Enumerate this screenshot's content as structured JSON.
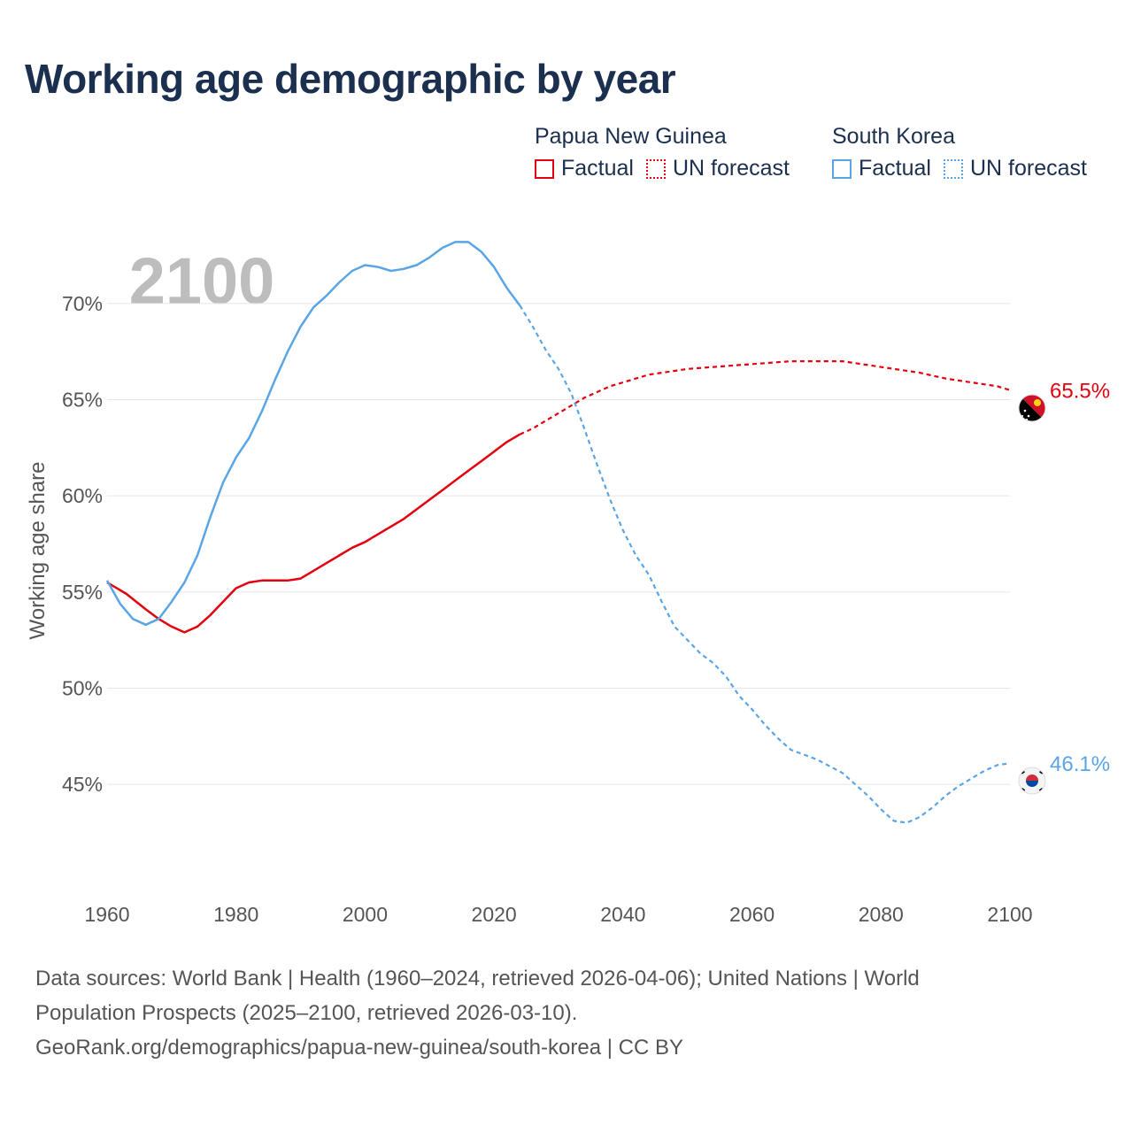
{
  "title": "Working age demographic by year",
  "year_watermark": "2100",
  "legend": {
    "papua_new_guinea": {
      "name": "Papua New Guinea",
      "factual": "Factual",
      "forecast": "UN forecast",
      "color": "#e3000f"
    },
    "south_korea": {
      "name": "South Korea",
      "factual": "Factual",
      "forecast": "UN forecast",
      "color": "#5aa5e6"
    }
  },
  "sources": {
    "line1": "Data sources: World Bank | Health (1960–2024, retrieved 2026-04-06); United Nations | World",
    "line2": "Population Prospects (2025–2100, retrieved 2026-03-10).",
    "line3": "GeoRank.org/demographics/papua-new-guinea/south-korea | CC BY"
  },
  "chart_data": {
    "type": "line",
    "ylabel": "Working age share",
    "xlabel": "",
    "xlim": [
      1960,
      2100
    ],
    "ylim": [
      41,
      74
    ],
    "x_ticks": [
      1960,
      1980,
      2000,
      2020,
      2040,
      2060,
      2080,
      2100
    ],
    "x_tick_labels": [
      "1960",
      "1980",
      "2000",
      "2020",
      "2040",
      "2060",
      "2080",
      "2100"
    ],
    "y_ticks": [
      45,
      50,
      55,
      60,
      65,
      70
    ],
    "y_tick_labels": [
      "45%",
      "50%",
      "55%",
      "60%",
      "65%",
      "70%"
    ],
    "forecast_start": 2024,
    "series": [
      {
        "name": "Papua New Guinea",
        "color": "#e3000f",
        "end_label": "65.5%",
        "points": [
          [
            1960,
            55.5
          ],
          [
            1963,
            54.9
          ],
          [
            1966,
            54.1
          ],
          [
            1968,
            53.6
          ],
          [
            1970,
            53.2
          ],
          [
            1972,
            52.9
          ],
          [
            1974,
            53.2
          ],
          [
            1976,
            53.8
          ],
          [
            1978,
            54.5
          ],
          [
            1980,
            55.2
          ],
          [
            1982,
            55.5
          ],
          [
            1984,
            55.6
          ],
          [
            1988,
            55.6
          ],
          [
            1990,
            55.7
          ],
          [
            1992,
            56.1
          ],
          [
            1994,
            56.5
          ],
          [
            1996,
            56.9
          ],
          [
            1998,
            57.3
          ],
          [
            2000,
            57.6
          ],
          [
            2002,
            58.0
          ],
          [
            2004,
            58.4
          ],
          [
            2006,
            58.8
          ],
          [
            2008,
            59.3
          ],
          [
            2010,
            59.8
          ],
          [
            2012,
            60.3
          ],
          [
            2014,
            60.8
          ],
          [
            2016,
            61.3
          ],
          [
            2018,
            61.8
          ],
          [
            2020,
            62.3
          ],
          [
            2022,
            62.8
          ],
          [
            2024,
            63.2
          ],
          [
            2026,
            63.5
          ],
          [
            2028,
            63.9
          ],
          [
            2030,
            64.3
          ],
          [
            2032,
            64.7
          ],
          [
            2034,
            65.1
          ],
          [
            2036,
            65.4
          ],
          [
            2038,
            65.7
          ],
          [
            2040,
            65.9
          ],
          [
            2042,
            66.1
          ],
          [
            2044,
            66.3
          ],
          [
            2046,
            66.4
          ],
          [
            2048,
            66.5
          ],
          [
            2050,
            66.6
          ],
          [
            2054,
            66.7
          ],
          [
            2058,
            66.8
          ],
          [
            2062,
            66.9
          ],
          [
            2066,
            67.0
          ],
          [
            2070,
            67.0
          ],
          [
            2074,
            67.0
          ],
          [
            2078,
            66.8
          ],
          [
            2082,
            66.6
          ],
          [
            2086,
            66.4
          ],
          [
            2090,
            66.1
          ],
          [
            2094,
            65.9
          ],
          [
            2098,
            65.7
          ],
          [
            2100,
            65.5
          ]
        ]
      },
      {
        "name": "South Korea",
        "color": "#5aa5e6",
        "end_label": "46.1%",
        "points": [
          [
            1960,
            55.6
          ],
          [
            1962,
            54.4
          ],
          [
            1964,
            53.6
          ],
          [
            1966,
            53.3
          ],
          [
            1968,
            53.6
          ],
          [
            1970,
            54.5
          ],
          [
            1972,
            55.5
          ],
          [
            1974,
            56.9
          ],
          [
            1976,
            58.9
          ],
          [
            1978,
            60.7
          ],
          [
            1980,
            62.0
          ],
          [
            1982,
            63.0
          ],
          [
            1984,
            64.4
          ],
          [
            1986,
            66.0
          ],
          [
            1988,
            67.5
          ],
          [
            1990,
            68.8
          ],
          [
            1992,
            69.8
          ],
          [
            1994,
            70.4
          ],
          [
            1996,
            71.1
          ],
          [
            1998,
            71.7
          ],
          [
            2000,
            72.0
          ],
          [
            2002,
            71.9
          ],
          [
            2004,
            71.7
          ],
          [
            2006,
            71.8
          ],
          [
            2008,
            72.0
          ],
          [
            2010,
            72.4
          ],
          [
            2012,
            72.9
          ],
          [
            2014,
            73.2
          ],
          [
            2016,
            73.2
          ],
          [
            2018,
            72.7
          ],
          [
            2020,
            71.9
          ],
          [
            2022,
            70.8
          ],
          [
            2024,
            69.9
          ],
          [
            2026,
            68.8
          ],
          [
            2028,
            67.6
          ],
          [
            2030,
            66.6
          ],
          [
            2032,
            65.3
          ],
          [
            2034,
            63.5
          ],
          [
            2036,
            61.6
          ],
          [
            2038,
            59.8
          ],
          [
            2040,
            58.2
          ],
          [
            2042,
            56.9
          ],
          [
            2044,
            55.9
          ],
          [
            2046,
            54.5
          ],
          [
            2048,
            53.2
          ],
          [
            2050,
            52.5
          ],
          [
            2052,
            51.8
          ],
          [
            2054,
            51.3
          ],
          [
            2056,
            50.6
          ],
          [
            2058,
            49.6
          ],
          [
            2060,
            48.9
          ],
          [
            2062,
            48.1
          ],
          [
            2064,
            47.4
          ],
          [
            2066,
            46.8
          ],
          [
            2070,
            46.3
          ],
          [
            2074,
            45.6
          ],
          [
            2078,
            44.4
          ],
          [
            2080,
            43.7
          ],
          [
            2082,
            43.1
          ],
          [
            2084,
            43.0
          ],
          [
            2086,
            43.3
          ],
          [
            2088,
            43.8
          ],
          [
            2090,
            44.4
          ],
          [
            2092,
            44.9
          ],
          [
            2094,
            45.3
          ],
          [
            2096,
            45.7
          ],
          [
            2098,
            46.0
          ],
          [
            2100,
            46.1
          ]
        ]
      }
    ]
  }
}
